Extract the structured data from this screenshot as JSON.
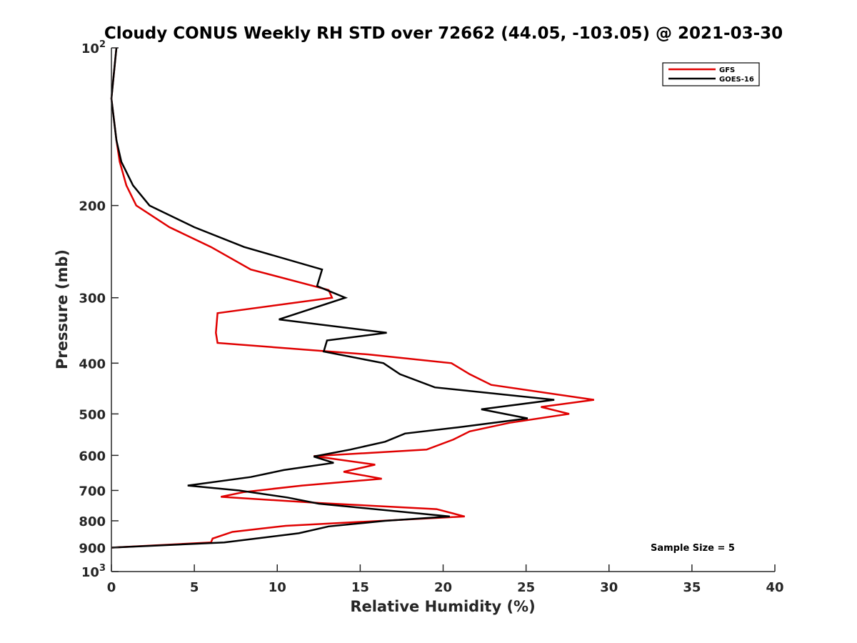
{
  "chart_data": {
    "type": "line",
    "title": "Cloudy CONUS Weekly RH STD over 72662 (44.05, -103.05) @ 2021-03-30",
    "xlabel": "Relative Humidity (%)",
    "ylabel": "Pressure (mb)",
    "xlim": [
      0,
      40
    ],
    "ylim": [
      100,
      1000
    ],
    "y_scale": "log",
    "y_reversed": true,
    "x_ticks": [
      0,
      5,
      10,
      15,
      20,
      25,
      30,
      35,
      40
    ],
    "x_tick_labels": [
      "0",
      "5",
      "10",
      "15",
      "20",
      "25",
      "30",
      "35",
      "40"
    ],
    "y_ticks": [
      100,
      200,
      300,
      400,
      500,
      600,
      700,
      800,
      900,
      1000
    ],
    "y_tick_labels": [
      {
        "base": "10",
        "exp": "2"
      },
      {
        "base": "200",
        "exp": ""
      },
      {
        "base": "300",
        "exp": ""
      },
      {
        "base": "400",
        "exp": ""
      },
      {
        "base": "500",
        "exp": ""
      },
      {
        "base": "600",
        "exp": ""
      },
      {
        "base": "700",
        "exp": ""
      },
      {
        "base": "800",
        "exp": ""
      },
      {
        "base": "900",
        "exp": ""
      },
      {
        "base": "10",
        "exp": "3"
      }
    ],
    "grid": false,
    "legend_position": "top-right",
    "annotation": "Sample Size = 5",
    "series": [
      {
        "name": "GFS",
        "color": "#e00000",
        "points": [
          [
            0.3,
            100
          ],
          [
            0.0,
            125
          ],
          [
            0.3,
            150
          ],
          [
            0.5,
            165
          ],
          [
            0.9,
            183
          ],
          [
            1.5,
            200
          ],
          [
            3.5,
            220
          ],
          [
            6.0,
            240
          ],
          [
            8.4,
            265
          ],
          [
            13.1,
            290
          ],
          [
            13.3,
            300
          ],
          [
            6.4,
            321
          ],
          [
            6.3,
            350
          ],
          [
            6.4,
            366
          ],
          [
            15.5,
            385
          ],
          [
            20.5,
            400
          ],
          [
            21.6,
            420
          ],
          [
            22.9,
            440
          ],
          [
            29.1,
            470
          ],
          [
            25.9,
            485
          ],
          [
            27.6,
            500
          ],
          [
            24.0,
            520
          ],
          [
            21.6,
            540
          ],
          [
            20.6,
            560
          ],
          [
            19.0,
            585
          ],
          [
            12.2,
            602
          ],
          [
            15.9,
            625
          ],
          [
            14.0,
            645
          ],
          [
            16.3,
            665
          ],
          [
            11.5,
            685
          ],
          [
            8.0,
            705
          ],
          [
            6.6,
            720
          ],
          [
            12.6,
            740
          ],
          [
            19.6,
            760
          ],
          [
            21.3,
            785
          ],
          [
            10.5,
            818
          ],
          [
            7.3,
            840
          ],
          [
            6.1,
            865
          ],
          [
            6.0,
            880
          ],
          [
            0.0,
            900
          ]
        ]
      },
      {
        "name": "GOES-16",
        "color": "#000000",
        "points": [
          [
            0.3,
            100
          ],
          [
            0.0,
            125
          ],
          [
            0.3,
            150
          ],
          [
            0.6,
            165
          ],
          [
            1.3,
            183
          ],
          [
            2.3,
            200
          ],
          [
            5.0,
            220
          ],
          [
            8.0,
            240
          ],
          [
            12.7,
            265
          ],
          [
            12.4,
            285
          ],
          [
            14.1,
            300
          ],
          [
            10.1,
            330
          ],
          [
            16.6,
            350
          ],
          [
            13.0,
            362
          ],
          [
            12.8,
            380
          ],
          [
            16.4,
            400
          ],
          [
            17.4,
            420
          ],
          [
            19.5,
            445
          ],
          [
            26.7,
            470
          ],
          [
            22.3,
            490
          ],
          [
            25.1,
            510
          ],
          [
            21.0,
            530
          ],
          [
            17.7,
            545
          ],
          [
            16.5,
            565
          ],
          [
            14.4,
            585
          ],
          [
            12.2,
            603
          ],
          [
            13.4,
            620
          ],
          [
            10.4,
            640
          ],
          [
            8.4,
            660
          ],
          [
            4.6,
            685
          ],
          [
            7.7,
            700
          ],
          [
            10.6,
            722
          ],
          [
            12.5,
            742
          ],
          [
            20.4,
            785
          ],
          [
            16.5,
            800
          ],
          [
            13.1,
            820
          ],
          [
            11.3,
            845
          ],
          [
            6.8,
            880
          ],
          [
            0.0,
            900
          ]
        ]
      }
    ]
  }
}
